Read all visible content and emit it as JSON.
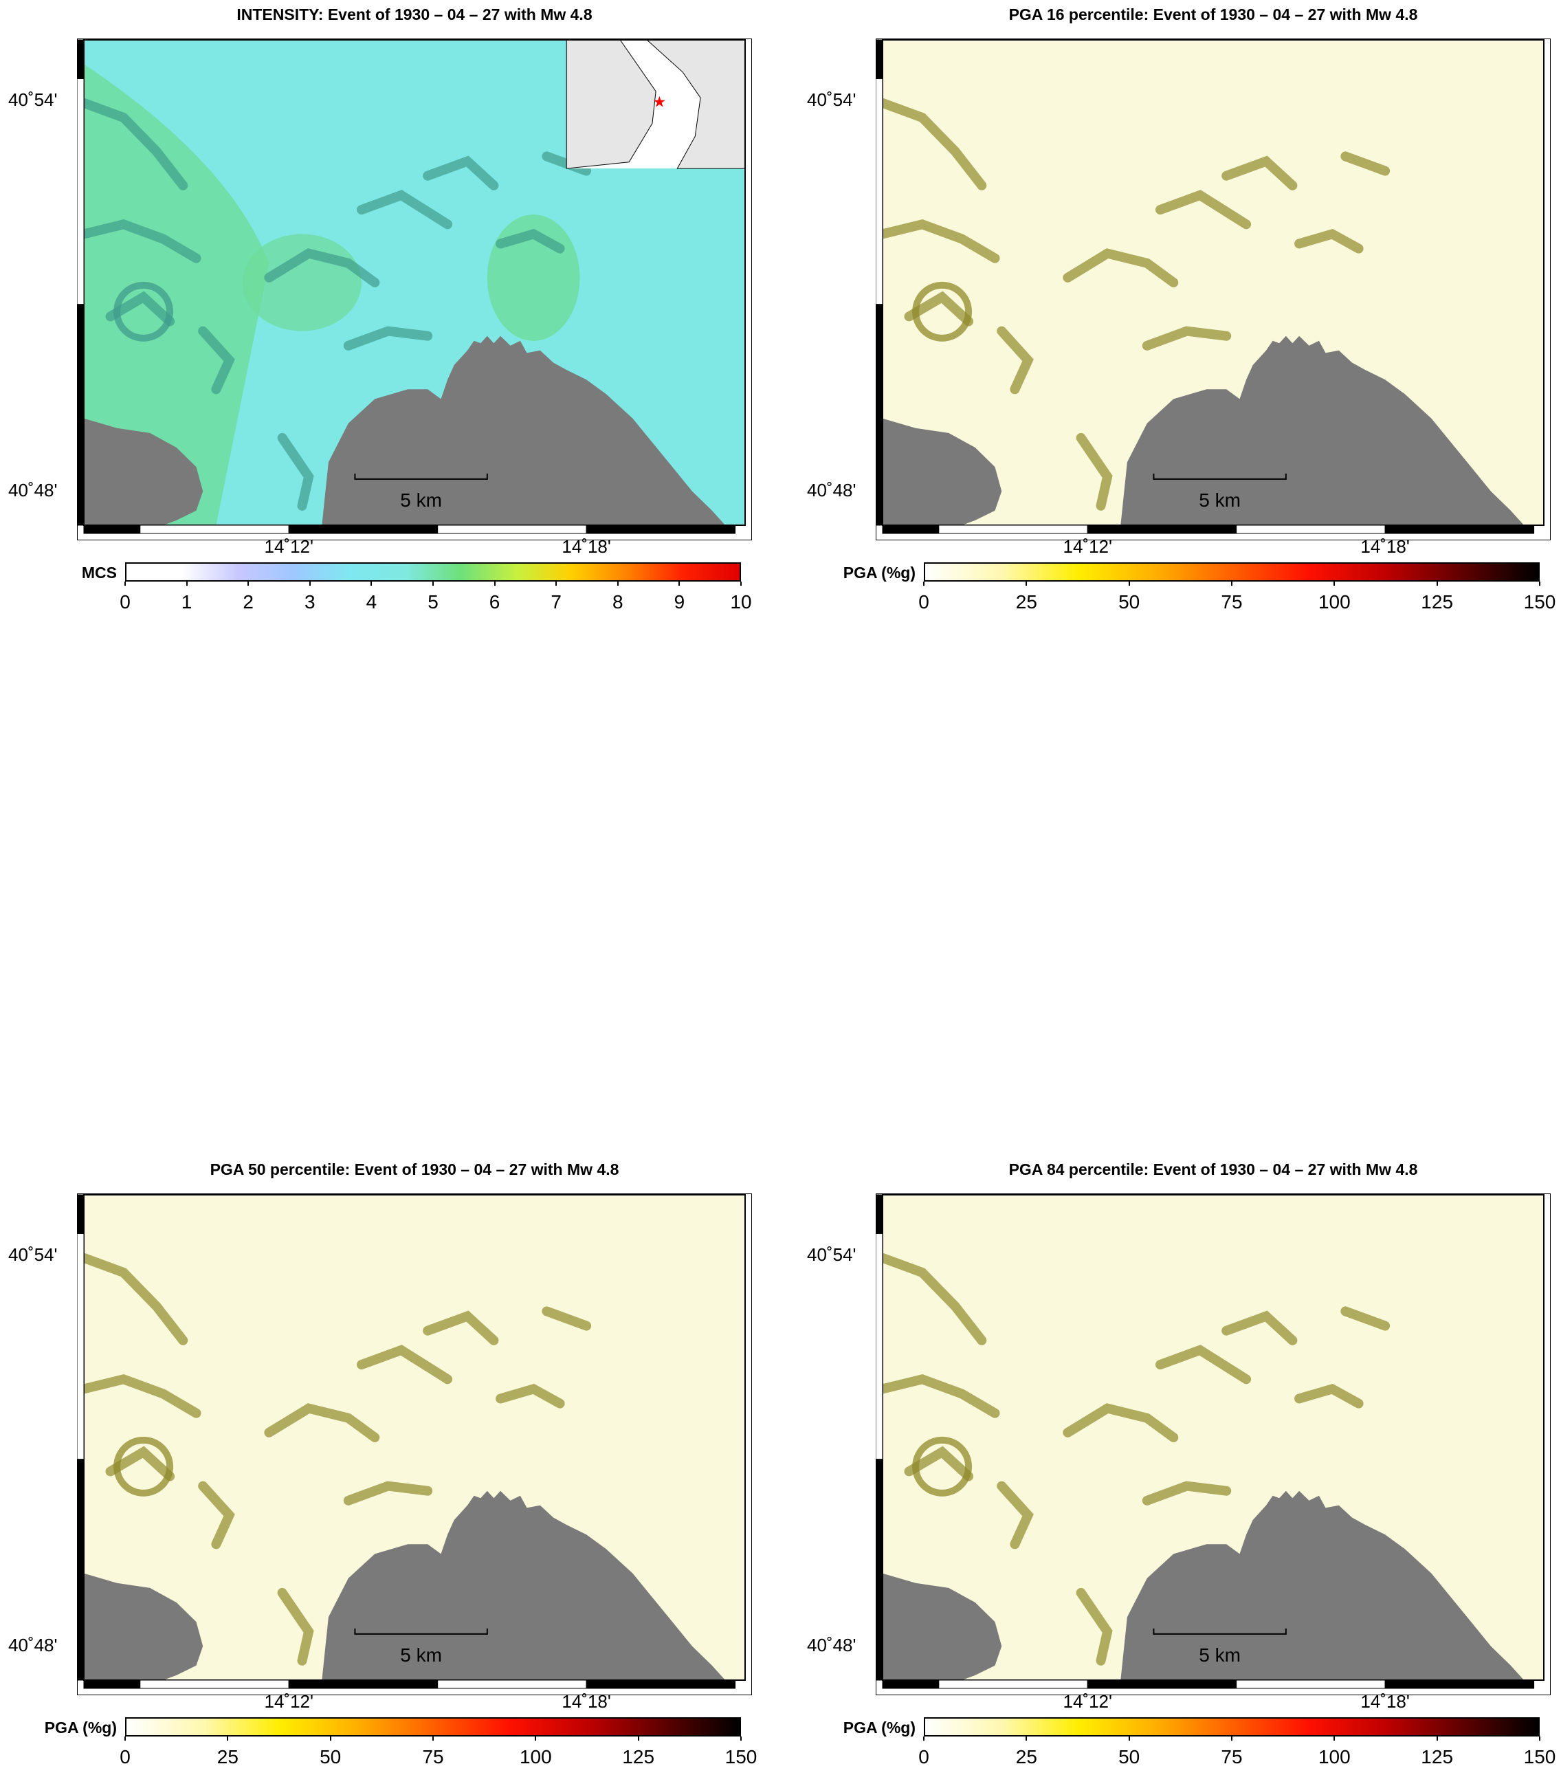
{
  "panels": [
    {
      "id": "intensity",
      "title": "INTENSITY: Event of 1930 – 04 – 27 with Mw 4.8",
      "colorbar_label": "MCS",
      "ticks": [
        "0",
        "1",
        "2",
        "3",
        "4",
        "5",
        "6",
        "7",
        "8",
        "9",
        "10"
      ],
      "has_inset": true
    },
    {
      "id": "pga16",
      "title": "PGA 16 percentile: Event of 1930 – 04 – 27 with Mw 4.8",
      "colorbar_label": "PGA (%g)",
      "ticks": [
        "0",
        "25",
        "50",
        "75",
        "100",
        "125",
        "150"
      ],
      "has_inset": false
    },
    {
      "id": "pga50",
      "title": "PGA 50 percentile: Event of 1930 – 04 – 27 with Mw 4.8",
      "colorbar_label": "PGA (%g)",
      "ticks": [
        "0",
        "25",
        "50",
        "75",
        "100",
        "125",
        "150"
      ],
      "has_inset": false
    },
    {
      "id": "pga84",
      "title": "PGA 84 percentile: Event of 1930 – 04 – 27 with Mw 4.8",
      "colorbar_label": "PGA (%g)",
      "ticks": [
        "0",
        "25",
        "50",
        "75",
        "100",
        "125",
        "150"
      ],
      "has_inset": false
    }
  ],
  "axes": {
    "lat_top": "40˚54'",
    "lat_bottom": "40˚48'",
    "lon_left": "14˚12'",
    "lon_right": "14˚18'"
  },
  "scalebar": "5 km",
  "colors": {
    "sea": "#7a7a7a",
    "intensity_land": "#7fe8e4",
    "intensity_high": "#6ddc9a",
    "pga_land": "#fbf9dc",
    "pga_relief": "#8f8a2a",
    "inset_land": "#e6e6e6",
    "epicenter": "#ff0000"
  },
  "colormaps": {
    "mcs": [
      "#ffffff",
      "#ffffff",
      "#c8c8ff",
      "#9ec8ff",
      "#7fe8f0",
      "#7fe8e0",
      "#6ee07a",
      "#c8f040",
      "#ffd000",
      "#ff8000",
      "#ff2000",
      "#e00000"
    ],
    "pga": [
      "#ffffff",
      "#fff8b0",
      "#ffee00",
      "#ffb000",
      "#ff6000",
      "#ff1000",
      "#c00000",
      "#600000",
      "#000000"
    ]
  }
}
